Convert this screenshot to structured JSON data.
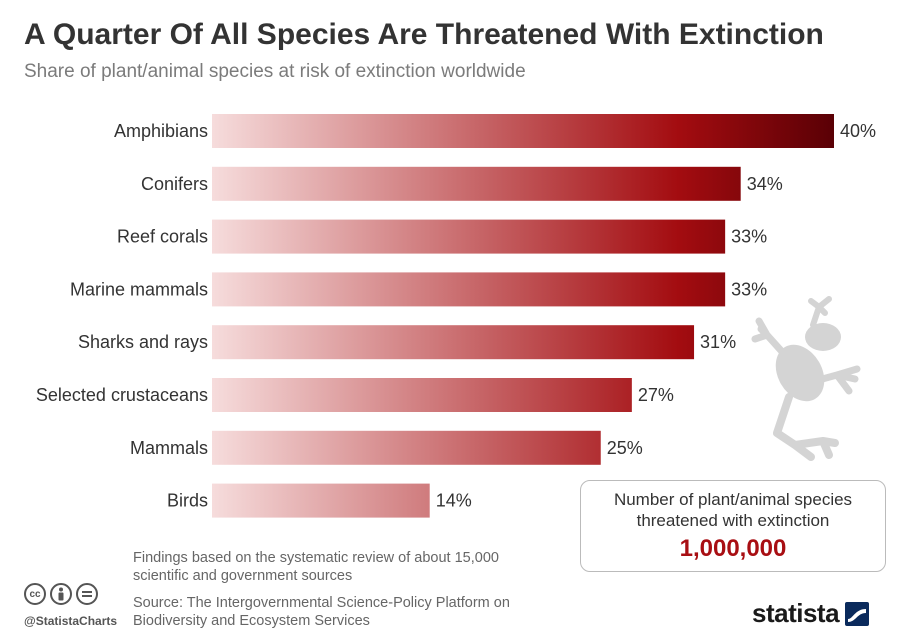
{
  "header": {
    "title": "A Quarter Of All Species Are Threatened With Extinction",
    "subtitle": "Share of plant/animal species at risk of extinction worldwide"
  },
  "chart_data": {
    "type": "bar",
    "orientation": "horizontal",
    "categories": [
      "Amphibians",
      "Conifers",
      "Reef corals",
      "Marine mammals",
      "Sharks and rays",
      "Selected crustaceans",
      "Mammals",
      "Birds"
    ],
    "values": [
      40,
      34,
      33,
      33,
      31,
      27,
      25,
      14
    ],
    "value_labels": [
      "40%",
      "34%",
      "33%",
      "33%",
      "31%",
      "27%",
      "25%",
      "14%"
    ],
    "title": "A Quarter Of All Species Are Threatened With Extinction",
    "subtitle": "Share of plant/animal species at risk of extinction worldwide",
    "xlim": [
      0,
      40
    ],
    "grid": false,
    "bar_colors": {
      "start": "#f6dcdc",
      "mid": "#a30c10",
      "end": "#5a0005"
    }
  },
  "callout": {
    "label": "Number of plant/animal species threatened with extinction",
    "value": "1,000,000",
    "value_color": "#a80e13"
  },
  "footer": {
    "note": "Findings based on the systematic review of about 15,000 scientific and government sources",
    "source": "Source: The Intergovernmental Science-Policy Platform on Biodiversity and Ecosystem Services",
    "handle": "@StatistaCharts",
    "brand": "statista",
    "license_icons": [
      "creative-commons-icon",
      "attribution-icon",
      "no-derivatives-icon"
    ]
  },
  "decoration": {
    "icon": "frog-icon",
    "color": "#d4d4d4"
  }
}
